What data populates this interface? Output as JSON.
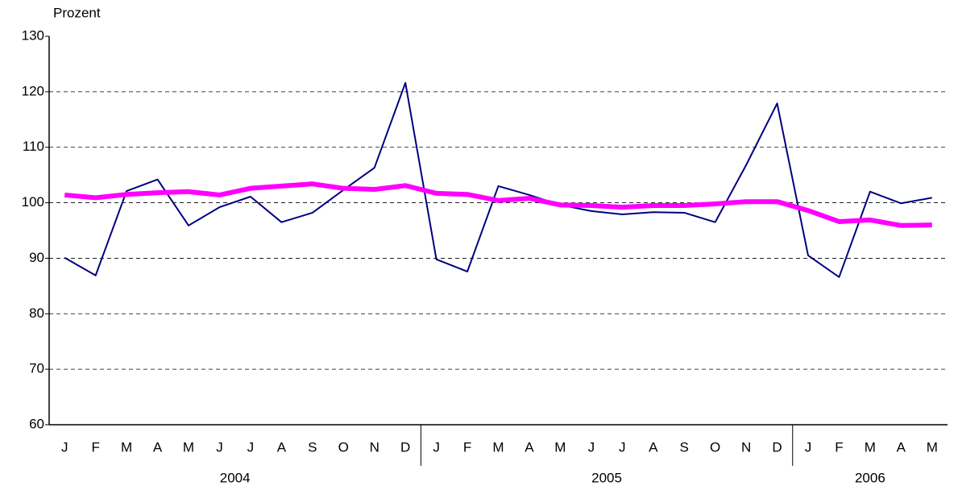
{
  "chart_data": {
    "type": "line",
    "y_label": "Prozent",
    "groups": [
      {
        "label": "2004",
        "categories": [
          "J",
          "F",
          "M",
          "A",
          "M",
          "J",
          "J",
          "A",
          "S",
          "O",
          "N",
          "D"
        ]
      },
      {
        "label": "2005",
        "categories": [
          "J",
          "F",
          "M",
          "A",
          "M",
          "J",
          "J",
          "A",
          "S",
          "O",
          "N",
          "D"
        ]
      },
      {
        "label": "2006",
        "categories": [
          "J",
          "F",
          "M",
          "A",
          "M"
        ]
      }
    ],
    "series": [
      {
        "color": "#000080",
        "width": 2,
        "values": [
          90.1,
          86.9,
          102.1,
          104.2,
          95.9,
          99.2,
          101.1,
          96.5,
          98.2,
          102.3,
          106.3,
          121.6,
          89.8,
          87.6,
          103.0,
          101.4,
          99.6,
          98.5,
          97.9,
          98.3,
          98.2,
          96.5,
          106.8,
          117.9,
          90.5,
          86.6,
          102.0,
          99.9,
          100.9
        ]
      },
      {
        "color": "#ff00ff",
        "width": 6,
        "values": [
          101.4,
          100.9,
          101.5,
          101.8,
          102.0,
          101.4,
          102.6,
          103.0,
          103.4,
          102.6,
          102.4,
          103.1,
          101.7,
          101.5,
          100.4,
          100.8,
          99.6,
          99.5,
          99.2,
          99.5,
          99.5,
          99.8,
          100.2,
          100.2,
          98.6,
          96.6,
          96.9,
          95.9,
          96.0
        ]
      }
    ],
    "ylim": [
      60,
      130
    ],
    "yticks": [
      60,
      70,
      80,
      90,
      100,
      110,
      120,
      130
    ],
    "grid": true
  }
}
